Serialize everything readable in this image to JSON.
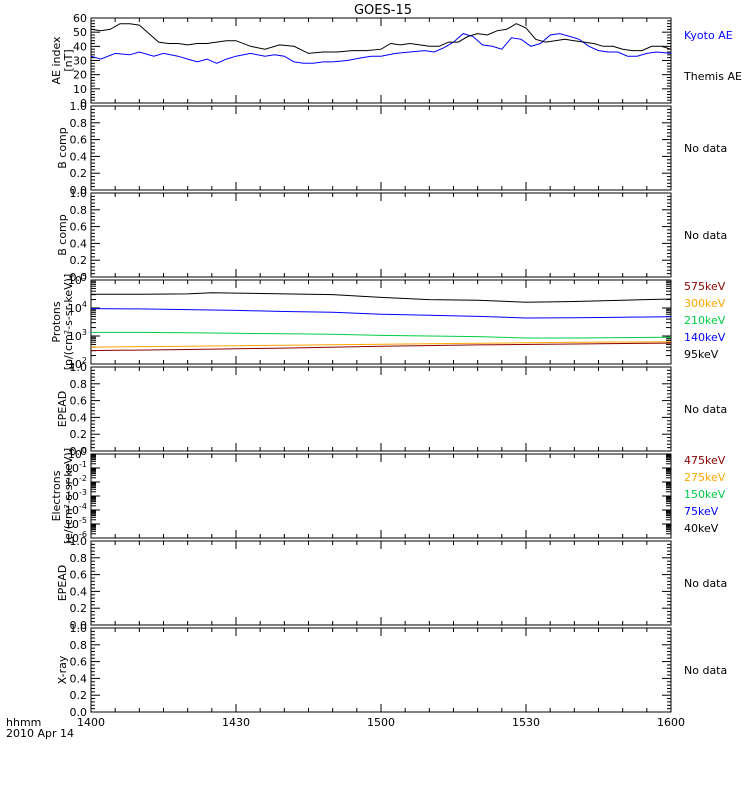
{
  "title": "GOES-15",
  "footer": {
    "time_label": "hhmm",
    "date_label": "2010 Apr 14"
  },
  "chart_data": [
    {
      "id": "ae",
      "type": "line",
      "ylabel": [
        "AE index",
        "[nT]"
      ],
      "ylim": [
        0,
        60
      ],
      "yticks": [
        "0",
        "10",
        "20",
        "30",
        "40",
        "50",
        "60"
      ],
      "legend_placement": "right",
      "series": [
        {
          "name": "Kyoto AE",
          "color": "#0000ff",
          "x": [
            1400,
            1402,
            1405,
            1408,
            1410,
            1413,
            1415,
            1418,
            1420,
            1422,
            1424,
            1426,
            1428,
            1430,
            1433,
            1436,
            1438,
            1440,
            1442,
            1444,
            1446,
            1448,
            1450,
            1453,
            1456,
            1458,
            1500,
            1503,
            1506,
            1509,
            1511,
            1513,
            1515,
            1517,
            1519,
            1521,
            1523,
            1525,
            1527,
            1529,
            1531,
            1533,
            1535,
            1537,
            1539,
            1541,
            1543,
            1545,
            1547,
            1549,
            1551,
            1553,
            1555,
            1557,
            1600
          ],
          "values": [
            33,
            31,
            35,
            34,
            36,
            33,
            35,
            33,
            31,
            29,
            31,
            28,
            31,
            33,
            35,
            33,
            34,
            33,
            29,
            28,
            28,
            29,
            29,
            30,
            32,
            33,
            33,
            35,
            36,
            37,
            36,
            39,
            43,
            49,
            47,
            41,
            40,
            38,
            46,
            45,
            40,
            42,
            48,
            49,
            47,
            45,
            40,
            37,
            36,
            36,
            33,
            33,
            35,
            36,
            35
          ]
        },
        {
          "name": "Themis AE",
          "color": "#000000",
          "x": [
            1400,
            1402,
            1404,
            1406,
            1408,
            1410,
            1412,
            1414,
            1416,
            1418,
            1420,
            1422,
            1424,
            1426,
            1428,
            1430,
            1433,
            1436,
            1439,
            1442,
            1445,
            1448,
            1451,
            1454,
            1457,
            1500,
            1502,
            1504,
            1506,
            1508,
            1510,
            1512,
            1514,
            1516,
            1518,
            1520,
            1522,
            1524,
            1526,
            1528,
            1530,
            1532,
            1534,
            1536,
            1538,
            1540,
            1542,
            1544,
            1546,
            1548,
            1550,
            1552,
            1554,
            1556,
            1558,
            1600
          ],
          "values": [
            52,
            51,
            52,
            56,
            56,
            55,
            49,
            43,
            42,
            42,
            41,
            42,
            42,
            43,
            44,
            44,
            40,
            38,
            41,
            40,
            35,
            36,
            36,
            37,
            37,
            38,
            42,
            41,
            42,
            41,
            40,
            40,
            43,
            43,
            47,
            49,
            48,
            51,
            52,
            56,
            53,
            45,
            43,
            44,
            45,
            44,
            43,
            42,
            40,
            40,
            38,
            37,
            37,
            40,
            40,
            38
          ]
        }
      ]
    },
    {
      "id": "b1",
      "type": "line",
      "ylabel": [
        "B comp"
      ],
      "ylim": [
        0,
        1
      ],
      "yticks": [
        "0.0",
        "0.2",
        "0.4",
        "0.6",
        "0.8",
        "1.0"
      ],
      "note": "No data",
      "series": []
    },
    {
      "id": "b2",
      "type": "line",
      "ylabel": [
        "B comp"
      ],
      "ylim": [
        0,
        1
      ],
      "yticks": [
        "0.0",
        "0.2",
        "0.4",
        "0.6",
        "0.8",
        "1.0"
      ],
      "note": "No data",
      "series": []
    },
    {
      "id": "protons",
      "type": "line",
      "log": true,
      "ylabel": [
        "Protons",
        "[p/(cm²-s-sr-keV)]"
      ],
      "ylim": [
        100,
        100000
      ],
      "ytick_exponents": [
        "2",
        "3",
        "4",
        "5"
      ],
      "legend_placement": "right",
      "series": [
        {
          "name": "575keV",
          "color": "#8b0000",
          "x": [
            1400,
            1420,
            1440,
            1500,
            1520,
            1540,
            1600
          ],
          "values": [
            300,
            330,
            370,
            430,
            480,
            520,
            560
          ]
        },
        {
          "name": "300keV",
          "color": "#ffa500",
          "x": [
            1400,
            1420,
            1440,
            1500,
            1520,
            1540,
            1600
          ],
          "values": [
            400,
            430,
            470,
            510,
            550,
            600,
            620
          ]
        },
        {
          "name": "210keV",
          "color": "#00cc44",
          "x": [
            1400,
            1410,
            1420,
            1430,
            1440,
            1450,
            1500,
            1510,
            1520,
            1530,
            1540,
            1550,
            1600
          ],
          "values": [
            1350,
            1350,
            1300,
            1250,
            1200,
            1150,
            1050,
            1000,
            950,
            850,
            850,
            880,
            900
          ]
        },
        {
          "name": "140keV",
          "color": "#0000ff",
          "x": [
            1400,
            1410,
            1420,
            1430,
            1440,
            1450,
            1500,
            1510,
            1520,
            1530,
            1540,
            1550,
            1600
          ],
          "values": [
            9500,
            9300,
            8800,
            8200,
            7500,
            7000,
            6000,
            5500,
            5000,
            4400,
            4500,
            4700,
            4900
          ]
        },
        {
          "name": "95keV",
          "color": "#000000",
          "x": [
            1400,
            1410,
            1420,
            1425,
            1430,
            1440,
            1450,
            1500,
            1510,
            1520,
            1530,
            1540,
            1550,
            1600
          ],
          "values": [
            31000,
            31000,
            32000,
            35000,
            34000,
            32000,
            30000,
            24000,
            20000,
            19000,
            16000,
            17000,
            19000,
            21000
          ]
        }
      ]
    },
    {
      "id": "epead1",
      "type": "line",
      "ylabel": [
        "EPEAD"
      ],
      "ylim": [
        0,
        1
      ],
      "yticks": [
        "0.0",
        "0.2",
        "0.4",
        "0.6",
        "0.8",
        "1.0"
      ],
      "note": "No data",
      "series": []
    },
    {
      "id": "electrons",
      "type": "line",
      "log": true,
      "ylabel": [
        "Electrons",
        "[e/(cm²-s-sr-keV)]"
      ],
      "ylim": [
        1e-06,
        1
      ],
      "ytick_exponents": [
        "-6",
        "-5",
        "-4",
        "-3",
        "-2",
        "-1",
        "0"
      ],
      "legend_placement": "right",
      "series": [
        {
          "name": "475keV",
          "color": "#8b0000",
          "x": [],
          "values": []
        },
        {
          "name": "275keV",
          "color": "#ffa500",
          "x": [],
          "values": []
        },
        {
          "name": "150keV",
          "color": "#00cc44",
          "x": [],
          "values": []
        },
        {
          "name": "75keV",
          "color": "#0000ff",
          "x": [],
          "values": []
        },
        {
          "name": "40keV",
          "color": "#000000",
          "x": [],
          "values": []
        }
      ]
    },
    {
      "id": "epead2",
      "type": "line",
      "ylabel": [
        "EPEAD"
      ],
      "ylim": [
        0,
        1
      ],
      "yticks": [
        "0.0",
        "0.2",
        "0.4",
        "0.6",
        "0.8",
        "1.0"
      ],
      "note": "No data",
      "series": []
    },
    {
      "id": "xray",
      "type": "line",
      "ylabel": [
        "X-ray"
      ],
      "ylim": [
        0,
        1
      ],
      "yticks": [
        "0.0",
        "0.2",
        "0.4",
        "0.6",
        "0.8",
        "1.0"
      ],
      "note": "No data",
      "series": []
    }
  ],
  "x_axis": {
    "xlim": [
      1400,
      1600
    ],
    "ticks": [
      1400,
      1430,
      1500,
      1530,
      1600
    ],
    "tick_labels": [
      "1400",
      "1430",
      "1500",
      "1530",
      "1600"
    ]
  }
}
